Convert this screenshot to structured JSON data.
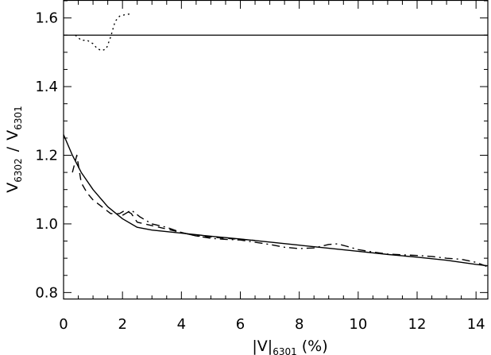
{
  "chart_data": {
    "type": "line",
    "xlabel": {
      "main": "|V|",
      "sub": "6301",
      "unit": "(%)"
    },
    "ylabel": {
      "num": "V",
      "num_sub": "6302",
      "sep": "/",
      "den": "V",
      "den_sub": "6301"
    },
    "xlim": [
      0,
      14.4
    ],
    "ylim": [
      0.78,
      1.65
    ],
    "x_ticks": [
      0,
      2,
      4,
      6,
      8,
      10,
      12,
      14
    ],
    "x_tick_labels": [
      "0",
      "2",
      "4",
      "6",
      "8",
      "10",
      "12",
      "14"
    ],
    "y_ticks": [
      0.8,
      1.0,
      1.2,
      1.4,
      1.6
    ],
    "y_tick_labels": [
      "0.8",
      "1.0",
      "1.2",
      "1.4",
      "1.6"
    ],
    "hline": {
      "y": 1.55,
      "style": "solid"
    },
    "series": [
      {
        "style": "solid",
        "x": [
          0,
          0.3,
          0.6,
          1.0,
          1.5,
          2.0,
          2.5,
          3.0,
          4.0,
          5.0,
          6.0,
          7.0,
          8.0,
          9.0,
          10.0,
          11.0,
          12.0,
          13.0,
          14.0,
          14.4
        ],
        "y": [
          1.26,
          1.2,
          1.15,
          1.1,
          1.05,
          1.015,
          0.99,
          0.982,
          0.973,
          0.964,
          0.956,
          0.947,
          0.938,
          0.929,
          0.92,
          0.911,
          0.903,
          0.894,
          0.882,
          0.878
        ]
      },
      {
        "style": "dashed",
        "x": [
          0.3,
          0.45,
          0.6,
          0.8,
          1.0,
          1.3,
          1.6,
          1.9,
          2.1,
          2.3,
          2.5,
          3.0,
          3.5,
          4.0,
          4.5,
          5.0,
          5.5,
          6.0,
          6.5
        ],
        "y": [
          1.15,
          1.2,
          1.12,
          1.09,
          1.07,
          1.05,
          1.03,
          1.03,
          1.04,
          1.03,
          1.005,
          0.995,
          0.985,
          0.975,
          0.965,
          0.962,
          0.958,
          0.955,
          0.952
        ]
      },
      {
        "style": "dashdot",
        "x": [
          2.0,
          2.3,
          2.6,
          3.0,
          3.5,
          4.0,
          4.5,
          5.0,
          5.5,
          6.0,
          7.0,
          7.5,
          8.0,
          8.5,
          9.0,
          9.3,
          9.6,
          10.0,
          10.5,
          11.0,
          11.5,
          12.0,
          12.5,
          13.0,
          13.5,
          14.0,
          14.4
        ],
        "y": [
          1.025,
          1.04,
          1.02,
          1.0,
          0.99,
          0.975,
          0.965,
          0.958,
          0.955,
          0.953,
          0.94,
          0.932,
          0.928,
          0.93,
          0.94,
          0.942,
          0.935,
          0.925,
          0.918,
          0.912,
          0.91,
          0.908,
          0.905,
          0.9,
          0.897,
          0.888,
          0.875
        ]
      },
      {
        "style": "dotted",
        "x": [
          0.4,
          0.6,
          0.8,
          1.0,
          1.15,
          1.3,
          1.45,
          1.6,
          1.75,
          1.9,
          2.1,
          2.3
        ],
        "y": [
          1.55,
          1.535,
          1.535,
          1.525,
          1.51,
          1.505,
          1.51,
          1.545,
          1.59,
          1.605,
          1.61,
          1.612
        ]
      }
    ]
  }
}
